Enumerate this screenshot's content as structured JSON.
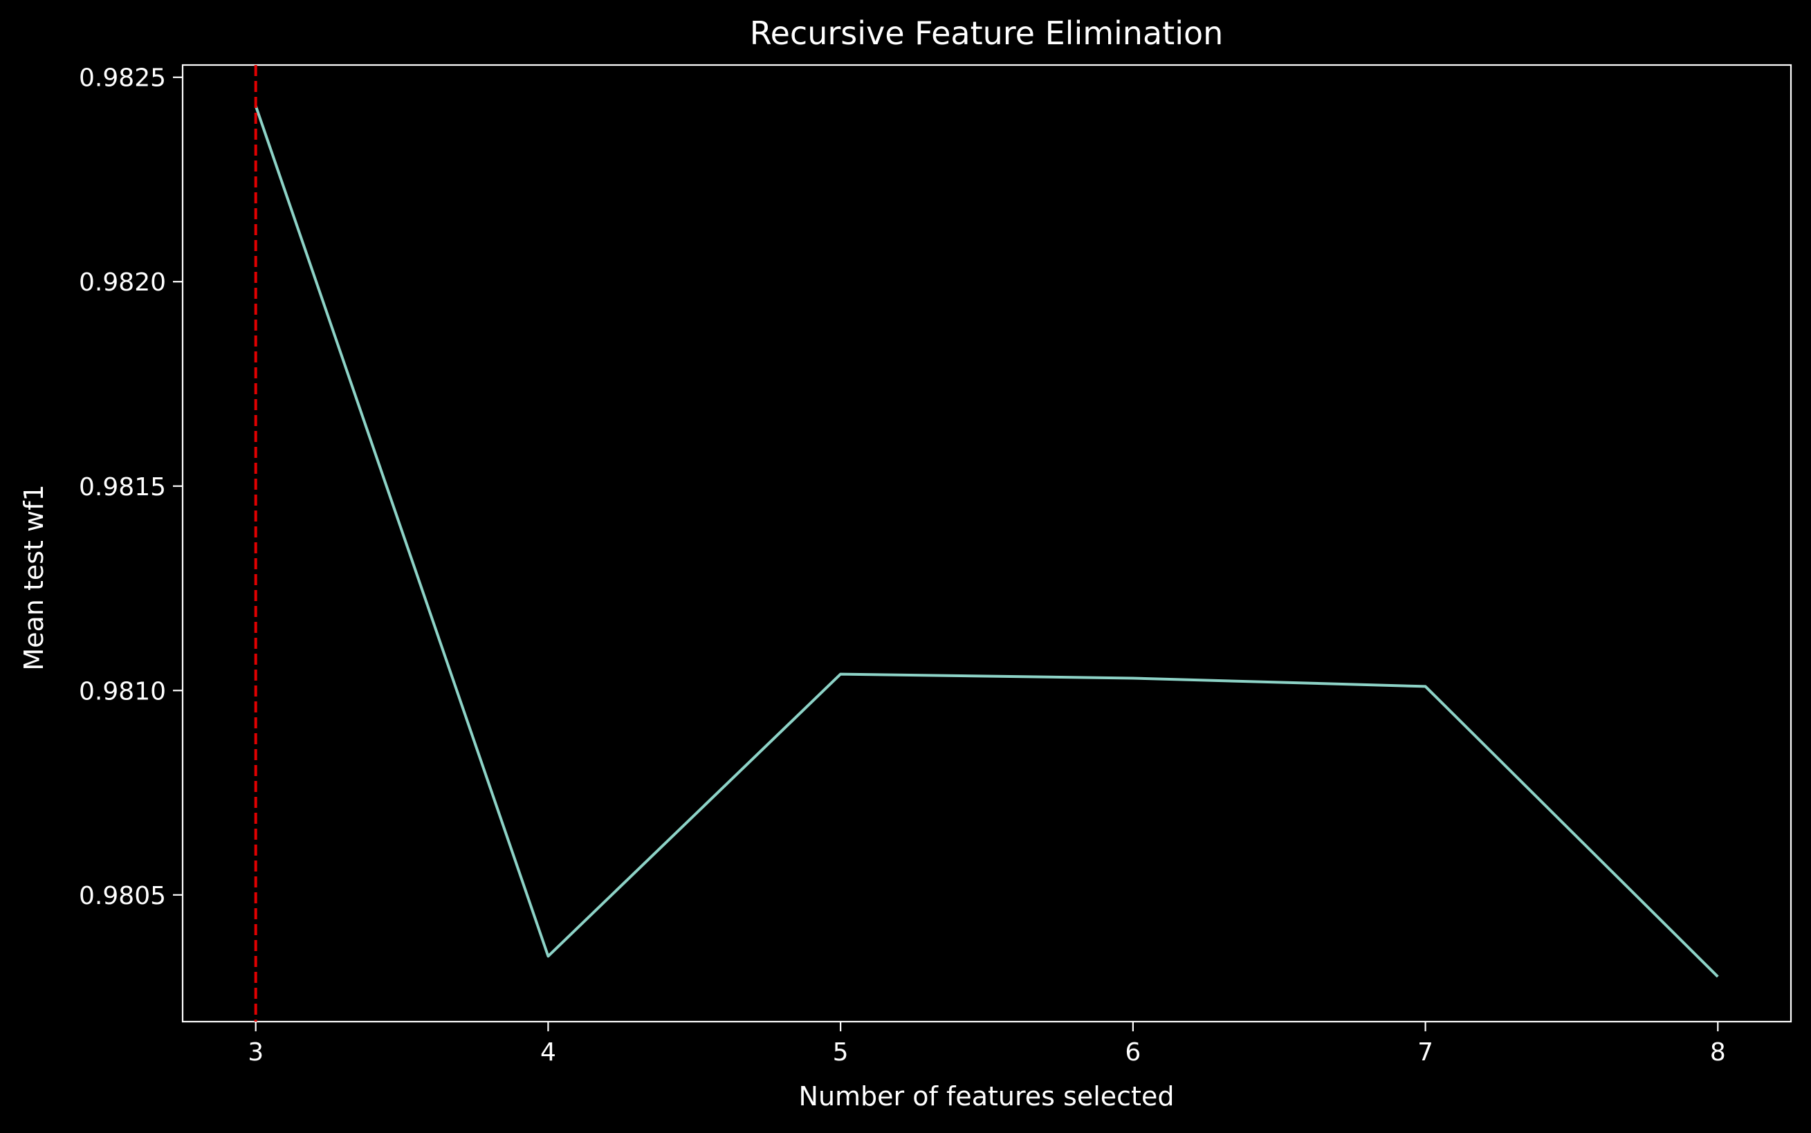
{
  "chart_data": {
    "type": "line",
    "title": "Recursive Feature Elimination",
    "xlabel": "Number of features selected",
    "ylabel": "Mean test wf1",
    "xlim": [
      2.75,
      8.25
    ],
    "ylim": [
      0.98019,
      0.98253
    ],
    "x_ticks": [
      3,
      4,
      5,
      6,
      7,
      8
    ],
    "y_ticks": [
      0.9805,
      0.981,
      0.9815,
      0.982,
      0.9825
    ],
    "y_tick_labels": [
      "0.9805",
      "0.9810",
      "0.9815",
      "0.9820",
      "0.9825"
    ],
    "grid": false,
    "series": [
      {
        "x": [
          3,
          4,
          5,
          6,
          7,
          8
        ],
        "values": [
          0.98243,
          0.98035,
          0.98104,
          0.98103,
          0.98101,
          0.9803
        ],
        "color": "#8dd3c7"
      }
    ],
    "reference_line": {
      "orientation": "vertical",
      "x": 3,
      "style": "dashed",
      "color": "#e00000"
    },
    "colors": {
      "background": "#000000",
      "axes": "#ffffff",
      "text": "#ffffff"
    }
  }
}
